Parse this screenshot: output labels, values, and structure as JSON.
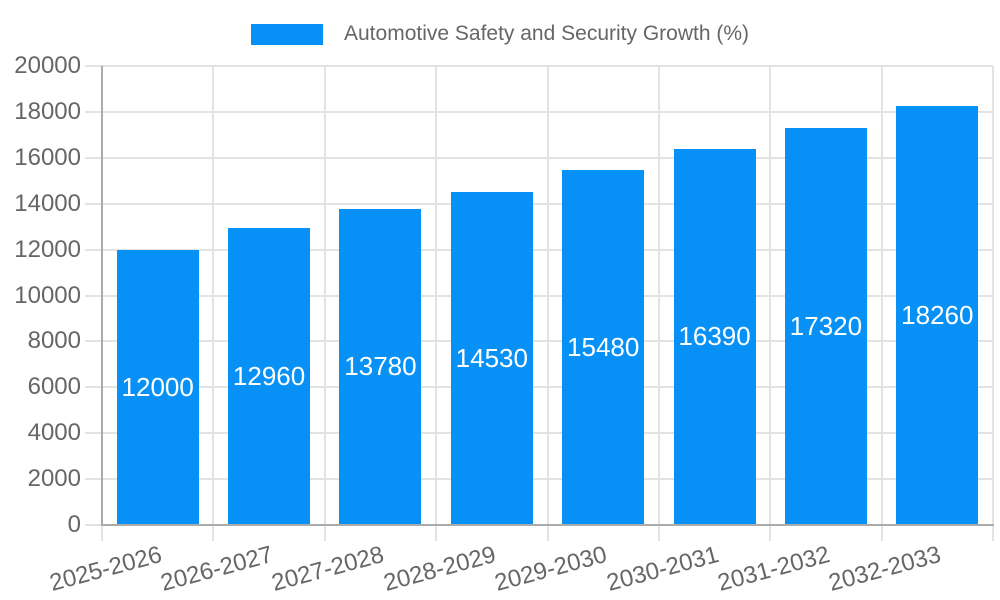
{
  "chart_data": {
    "type": "bar",
    "title": "Automotive Safety and Security Growth (%)",
    "categories": [
      "2025-2026",
      "2026-2027",
      "2027-2028",
      "2028-2029",
      "2029-2030",
      "2030-2031",
      "2031-2032",
      "2032-2033"
    ],
    "values": [
      12000,
      12960,
      13780,
      14530,
      15480,
      16390,
      17320,
      18260
    ],
    "xlabel": "",
    "ylabel": "",
    "ylim": [
      0,
      20000
    ],
    "ytick_step": 2000,
    "ytick_labels": [
      "0",
      "2000",
      "4000",
      "6000",
      "8000",
      "10000",
      "12000",
      "14000",
      "16000",
      "18000",
      "20000"
    ],
    "grid": true,
    "legend_position": "top",
    "bar_labels_inside": true,
    "x_label_rotation_deg": -15,
    "colors": {
      "bar": "#0791F6",
      "bar_label": "#FFFFFF",
      "axis_text": "#666666",
      "grid_line": "#E3E3E3",
      "axis_line": "#ABABAB",
      "background": "#FFFFFF"
    }
  }
}
